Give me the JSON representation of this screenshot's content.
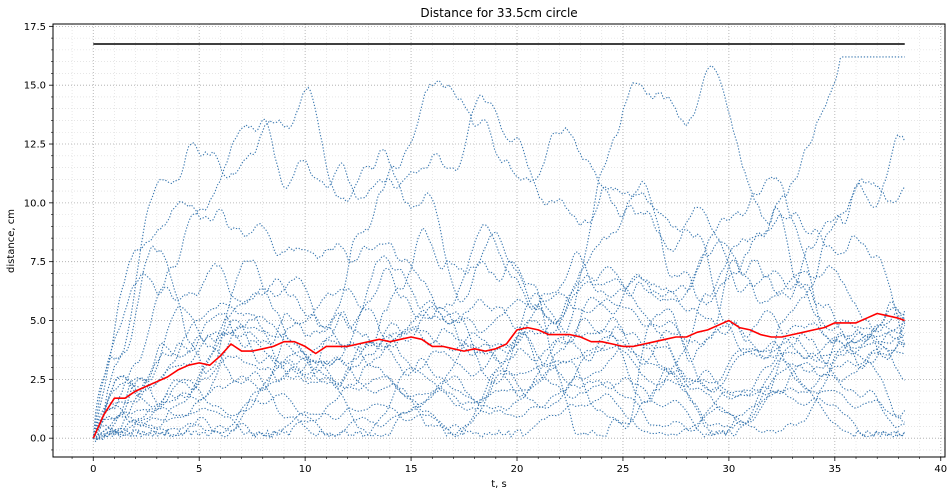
{
  "chart_data": {
    "type": "line",
    "title": "Distance for 33.5cm circle",
    "xlabel": "t, s",
    "ylabel": "distance, cm",
    "xlim": [
      -1.9,
      40.2
    ],
    "ylim": [
      -0.8,
      17.6
    ],
    "x_ticks": [
      0,
      5,
      10,
      15,
      20,
      25,
      30,
      35,
      40
    ],
    "x_tick_labels": [
      "0",
      "5",
      "10",
      "15",
      "20",
      "25",
      "30",
      "35",
      "40"
    ],
    "y_ticks": [
      0,
      2.5,
      5,
      7.5,
      10,
      12.5,
      15,
      17.5
    ],
    "y_tick_labels": [
      "0.0",
      "2.5",
      "5.0",
      "7.5",
      "10.0",
      "12.5",
      "15.0",
      "17.5"
    ],
    "grid": true,
    "minor_grid": true,
    "colors": {
      "trials": "#3a78b0",
      "mean": "#ff0000",
      "reference": "#000000"
    },
    "reference_line": {
      "y": 16.75,
      "x_start": 0,
      "x_end": 38.3
    },
    "mean_series": {
      "x": [
        0,
        0.5,
        1,
        1.5,
        2,
        2.5,
        3,
        3.5,
        4,
        4.5,
        5,
        5.5,
        6,
        6.5,
        7,
        7.5,
        8,
        8.5,
        9,
        9.5,
        10,
        10.5,
        11,
        11.5,
        12,
        12.5,
        13,
        13.5,
        14,
        14.5,
        15,
        15.5,
        16,
        16.5,
        17,
        17.5,
        18,
        18.5,
        19,
        19.5,
        20,
        20.5,
        21,
        21.5,
        22,
        22.5,
        23,
        23.5,
        24,
        24.5,
        25,
        25.5,
        26,
        26.5,
        27,
        27.5,
        28,
        28.5,
        29,
        29.5,
        30,
        30.5,
        31,
        31.5,
        32,
        32.5,
        33,
        33.5,
        34,
        34.5,
        35,
        35.5,
        36,
        36.5,
        37,
        37.5,
        38,
        38.3
      ],
      "y": [
        0.0,
        1.0,
        1.7,
        1.7,
        2.0,
        2.2,
        2.4,
        2.6,
        2.9,
        3.1,
        3.2,
        3.1,
        3.5,
        4.0,
        3.7,
        3.7,
        3.8,
        3.9,
        4.1,
        4.1,
        3.9,
        3.6,
        3.9,
        3.9,
        3.9,
        4.0,
        4.1,
        4.2,
        4.1,
        4.2,
        4.3,
        4.2,
        3.9,
        3.9,
        3.8,
        3.7,
        3.8,
        3.7,
        3.8,
        4.0,
        4.6,
        4.7,
        4.6,
        4.4,
        4.4,
        4.4,
        4.3,
        4.1,
        4.1,
        4.0,
        3.9,
        3.9,
        4.0,
        4.1,
        4.2,
        4.3,
        4.3,
        4.5,
        4.6,
        4.8,
        5.0,
        4.7,
        4.6,
        4.4,
        4.3,
        4.3,
        4.4,
        4.5,
        4.6,
        4.7,
        4.9,
        4.9,
        4.9,
        5.1,
        5.3,
        5.2,
        5.1,
        5.0
      ]
    },
    "trial_count": 20
  }
}
